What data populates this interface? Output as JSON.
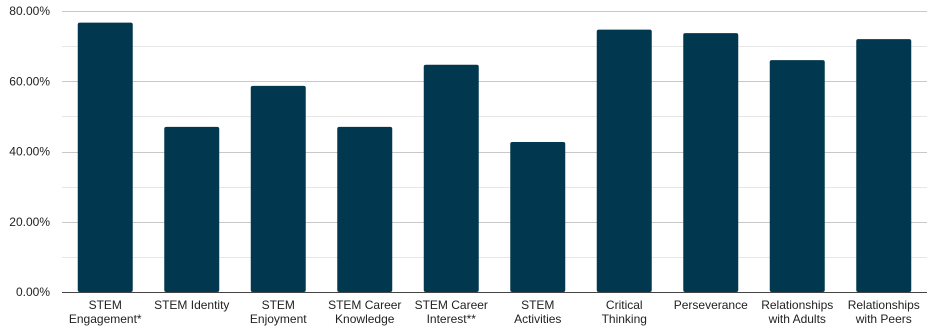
{
  "chart_data": {
    "type": "bar",
    "categories": [
      [
        "STEM",
        "Engagement*"
      ],
      [
        "STEM Identity"
      ],
      [
        "STEM",
        "Enjoyment"
      ],
      [
        "STEM Career",
        "Knowledge"
      ],
      [
        "STEM Career",
        "Interest**"
      ],
      [
        "STEM",
        "Activities"
      ],
      [
        "Critical",
        "Thinking"
      ],
      [
        "Perseverance"
      ],
      [
        "Relationships",
        "with Adults"
      ],
      [
        "Relationships",
        "with Peers"
      ]
    ],
    "values": [
      76.7,
      47.0,
      58.7,
      47.0,
      64.7,
      42.7,
      74.7,
      73.7,
      66.0,
      72.0
    ],
    "ylim": [
      0,
      80
    ],
    "yticks": [
      0,
      20,
      40,
      60,
      80
    ],
    "ytick_labels": [
      "0.00%",
      "20.00%",
      "40.00%",
      "60.00%",
      "80.00%"
    ],
    "minor_grid_step": 10,
    "bar_color": "#02384f",
    "grid": true,
    "legend": "none"
  }
}
